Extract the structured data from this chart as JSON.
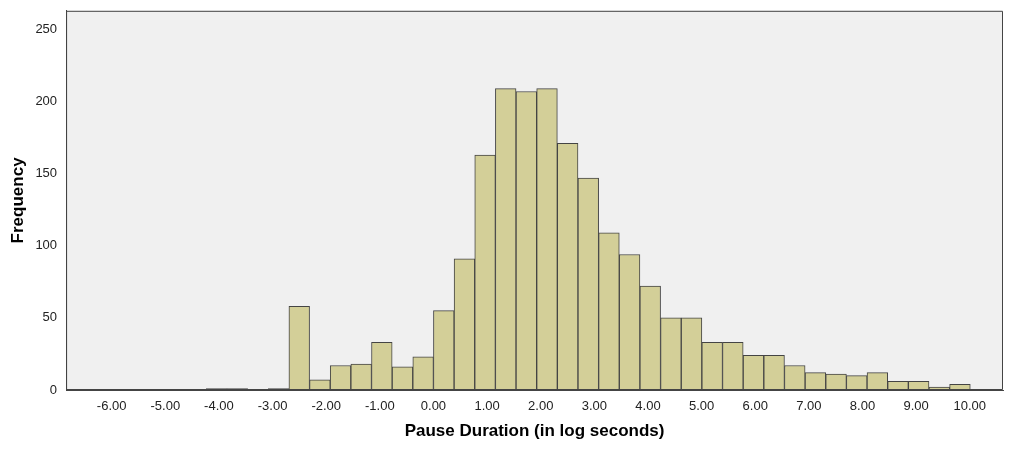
{
  "chart_data": {
    "type": "histogram",
    "xlabel": "Pause Duration (in log seconds)",
    "ylabel": "Frequency",
    "bins": [
      -4.235,
      -3.85,
      -3.465,
      -3.08,
      -2.695,
      -2.31,
      -1.925,
      -1.54,
      -1.155,
      -0.77,
      -0.385,
      0,
      0.385,
      0.77,
      1.155,
      1.54,
      1.925,
      2.31,
      2.695,
      3.08,
      3.465,
      3.85,
      4.235,
      4.62,
      5.005,
      5.39,
      5.775,
      6.16,
      6.545,
      6.93,
      7.315,
      7.7,
      8.085,
      8.47,
      8.855,
      9.24,
      9.625,
      10.01
    ],
    "values": [
      1,
      1,
      0,
      1,
      58,
      7,
      17,
      18,
      33,
      16,
      23,
      55,
      91,
      163,
      209,
      207,
      209,
      171,
      147,
      109,
      94,
      72,
      50,
      50,
      33,
      33,
      24,
      24,
      17,
      12,
      11,
      10,
      12,
      6,
      6,
      2,
      4
    ],
    "color": "#d3cf98",
    "xlim": [
      -6.85,
      10.62
    ],
    "xticks": [
      {
        "value": -6,
        "label": "-6.00"
      },
      {
        "value": -5,
        "label": "-5.00"
      },
      {
        "value": -4,
        "label": "-4.00"
      },
      {
        "value": -3,
        "label": "-3.00"
      },
      {
        "value": -2,
        "label": "-2.00"
      },
      {
        "value": -1,
        "label": "-1.00"
      },
      {
        "value": 0,
        "label": "0.00"
      },
      {
        "value": 1,
        "label": "1.00"
      },
      {
        "value": 2,
        "label": "2.00"
      },
      {
        "value": 3,
        "label": "3.00"
      },
      {
        "value": 4,
        "label": "4.00"
      },
      {
        "value": 5,
        "label": "5.00"
      },
      {
        "value": 6,
        "label": "6.00"
      },
      {
        "value": 7,
        "label": "7.00"
      },
      {
        "value": 8,
        "label": "8.00"
      },
      {
        "value": 9,
        "label": "9.00"
      },
      {
        "value": 10,
        "label": "10.00"
      }
    ],
    "ylim": [
      0,
      263
    ],
    "yticks": [
      0,
      50,
      100,
      150,
      200,
      250
    ],
    "grid": false,
    "legend": false
  }
}
